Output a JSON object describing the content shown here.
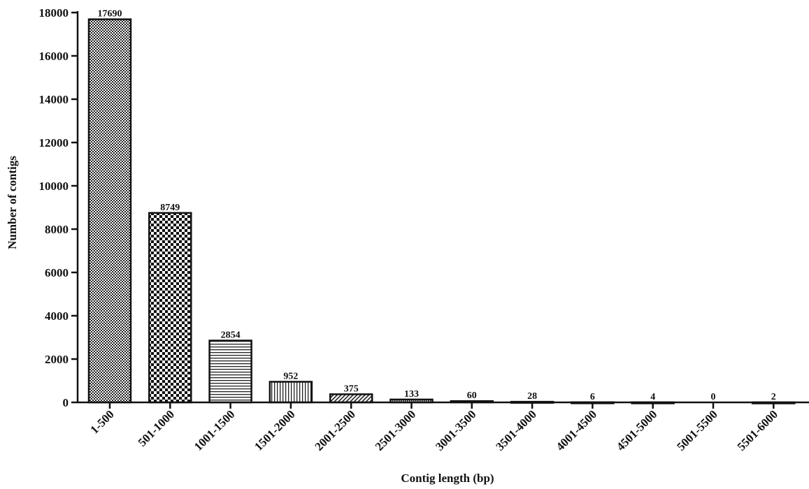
{
  "chart_data": {
    "type": "bar",
    "categories": [
      "1-500",
      "501-1000",
      "1001-1500",
      "1501-2000",
      "2001-2500",
      "2501-3000",
      "3001-3500",
      "3501-4000",
      "4001-4500",
      "4501-5000",
      "5001-5500",
      "5501-6000"
    ],
    "values": [
      17690,
      8749,
      2854,
      952,
      375,
      133,
      60,
      28,
      6,
      4,
      0,
      2
    ],
    "data_labels": [
      "17690",
      "8749",
      "2854",
      "952",
      "375",
      "133",
      "60",
      "28",
      "6",
      "4",
      "0",
      "2"
    ],
    "yticks": [
      "0",
      "2000",
      "4000",
      "6000",
      "8000",
      "10000",
      "12000",
      "14000",
      "16000",
      "18000"
    ],
    "xlabel": "Contig length (bp)",
    "ylabel": "Number of contigs",
    "ylim": [
      0,
      18000
    ],
    "grid": false,
    "bar_fills": [
      "checker-fine",
      "checker-coarse",
      "horizontal-lines",
      "vertical-lines",
      "diagonal-hatch",
      "dots",
      "solid",
      "solid",
      "solid",
      "solid",
      "solid",
      "solid"
    ],
    "colors": {
      "ink": "#111111",
      "background": "#ffffff"
    }
  }
}
